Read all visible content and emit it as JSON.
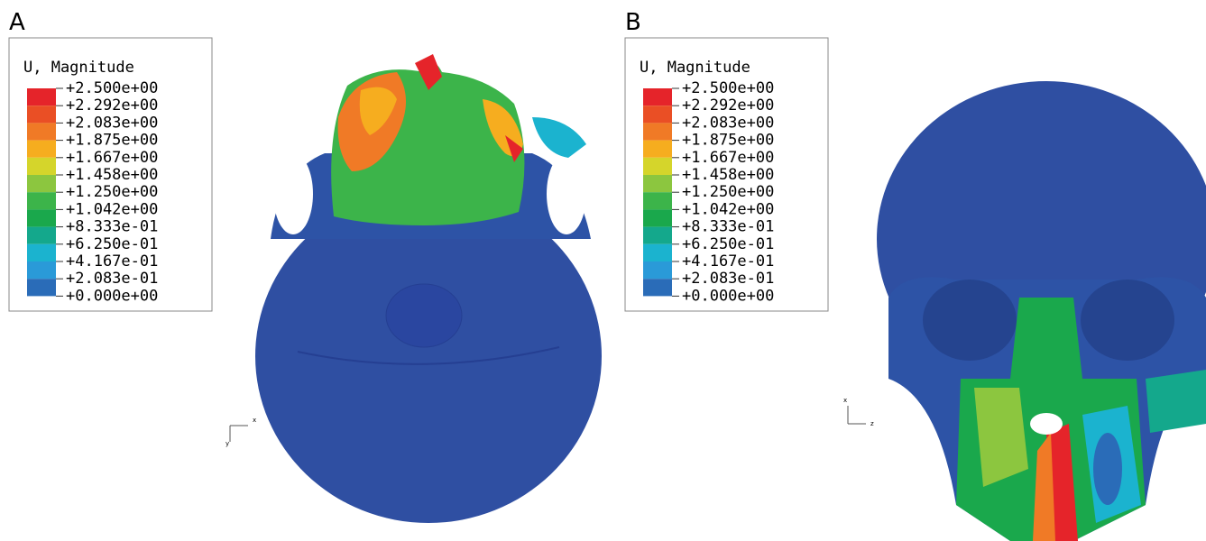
{
  "panels": [
    {
      "label": "A",
      "legend": {
        "title": "U, Magnitude",
        "labels": [
          "+2.500e+00",
          "+2.292e+00",
          "+2.083e+00",
          "+1.875e+00",
          "+1.667e+00",
          "+1.458e+00",
          "+1.250e+00",
          "+1.042e+00",
          "+8.333e-01",
          "+6.250e-01",
          "+4.167e-01",
          "+2.083e-01",
          "+0.000e+00"
        ],
        "colors": [
          "#e5242a",
          "#ea4f25",
          "#f07a26",
          "#f6ad1f",
          "#d5d52b",
          "#8cc63f",
          "#3cb44a",
          "#1aa84c",
          "#14a88c",
          "#1bb3cf",
          "#2a9ad8",
          "#2a6cb8",
          "#2f4fa2"
        ]
      },
      "triad": [
        "x",
        "y"
      ]
    },
    {
      "label": "B",
      "legend": {
        "title": "U, Magnitude",
        "labels": [
          "+2.500e+00",
          "+2.292e+00",
          "+2.083e+00",
          "+1.875e+00",
          "+1.667e+00",
          "+1.458e+00",
          "+1.250e+00",
          "+1.042e+00",
          "+8.333e-01",
          "+6.250e-01",
          "+4.167e-01",
          "+2.083e-01",
          "+0.000e+00"
        ],
        "colors": [
          "#e5242a",
          "#ea4f25",
          "#f07a26",
          "#f6ad1f",
          "#d5d52b",
          "#8cc63f",
          "#3cb44a",
          "#1aa84c",
          "#14a88c",
          "#1bb3cf",
          "#2a9ad8",
          "#2a6cb8",
          "#2f4fa2"
        ]
      },
      "triad": [
        "z",
        "x"
      ]
    }
  ]
}
